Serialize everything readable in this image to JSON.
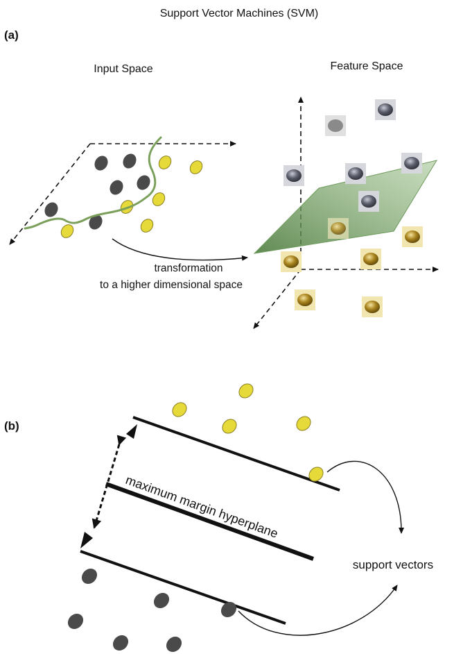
{
  "title": "Support Vector Machines (SVM)",
  "panel_a": {
    "label": "(a)",
    "input_space_label": "Input Space",
    "feature_space_label": "Feature Space",
    "transformation_line1": "transformation",
    "transformation_line2": "to a higher dimensional space"
  },
  "panel_b": {
    "label": "(b)",
    "hyperplane_label": "maximum margin hyperplane",
    "support_vectors_label": "support vectors"
  },
  "colors": {
    "dark_class": "#4a4a4a",
    "yellow_class": "#e6d93a",
    "boundary_curve": "#7ba05b",
    "plane_fill": "#5f8f4e"
  }
}
